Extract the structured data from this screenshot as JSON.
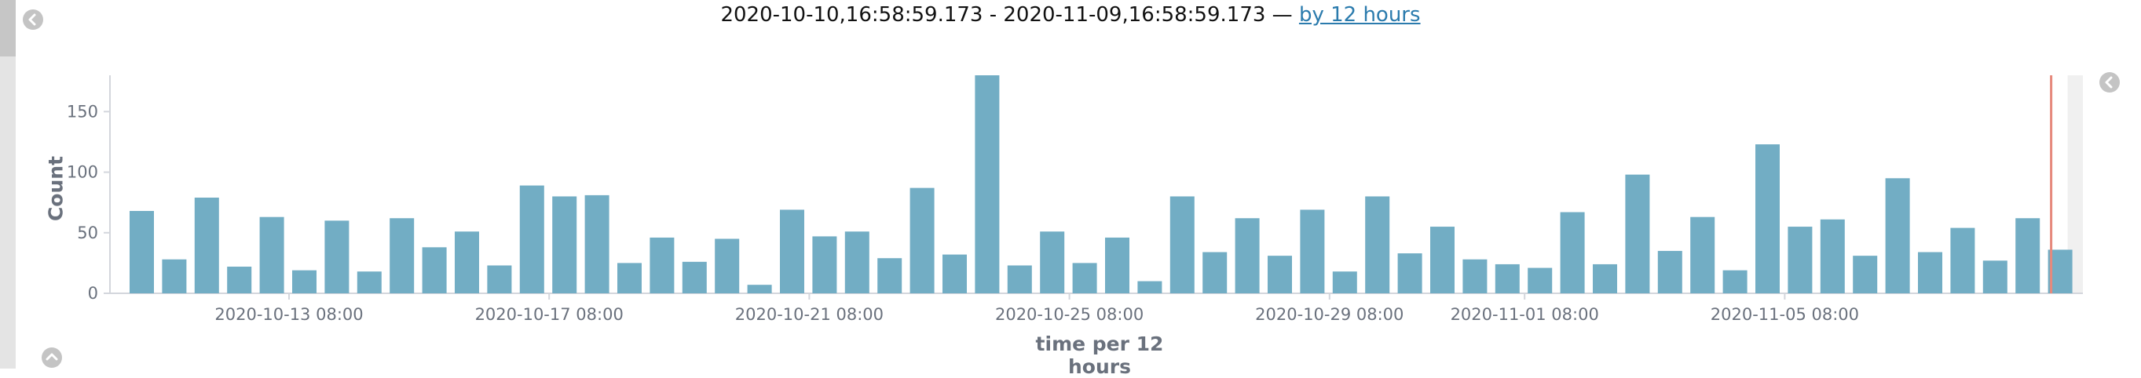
{
  "header": {
    "range_text": "2020-10-10,16:58:59.173 - 2020-11-09,16:58:59.173 —",
    "interval_link": "by 12 hours"
  },
  "colors": {
    "bar": "#72adc4",
    "axis": "#d3d6dc",
    "tick_text": "#6a717d",
    "current_time_marker": "#e6897c",
    "partial_bucket_shade": "#f0f0f0"
  },
  "icons": {
    "left_panel_toggle": "chevron-left-icon",
    "right_panel_toggle": "chevron-left-icon",
    "bottom_panel_toggle": "chevron-up-icon"
  },
  "chart_data": {
    "type": "bar",
    "xlabel": "time per 12 hours",
    "ylabel": "Count",
    "ylim": [
      0,
      180
    ],
    "y_ticks": [
      0,
      50,
      100,
      150
    ],
    "x_ticks": [
      {
        "label": "2020-10-13 08:00",
        "index": 5
      },
      {
        "label": "2020-10-17 08:00",
        "index": 13
      },
      {
        "label": "2020-10-21 08:00",
        "index": 21
      },
      {
        "label": "2020-10-25 08:00",
        "index": 29
      },
      {
        "label": "2020-10-29 08:00",
        "index": 37
      },
      {
        "label": "2020-11-01 08:00",
        "index": 43
      },
      {
        "label": "2020-11-05 08:00",
        "index": 51
      }
    ],
    "grid": false,
    "legend": "none",
    "current_time_marker_index": 59,
    "partial_bucket_start_index": 59,
    "values": [
      68,
      28,
      79,
      22,
      63,
      19,
      60,
      18,
      62,
      38,
      51,
      23,
      89,
      80,
      81,
      25,
      46,
      26,
      45,
      7,
      69,
      47,
      51,
      29,
      87,
      32,
      180,
      23,
      51,
      25,
      46,
      10,
      80,
      34,
      62,
      31,
      69,
      18,
      80,
      33,
      55,
      28,
      24,
      21,
      67,
      24,
      98,
      35,
      63,
      19,
      123,
      55,
      61,
      31,
      95,
      34,
      54,
      27,
      62,
      36
    ]
  }
}
